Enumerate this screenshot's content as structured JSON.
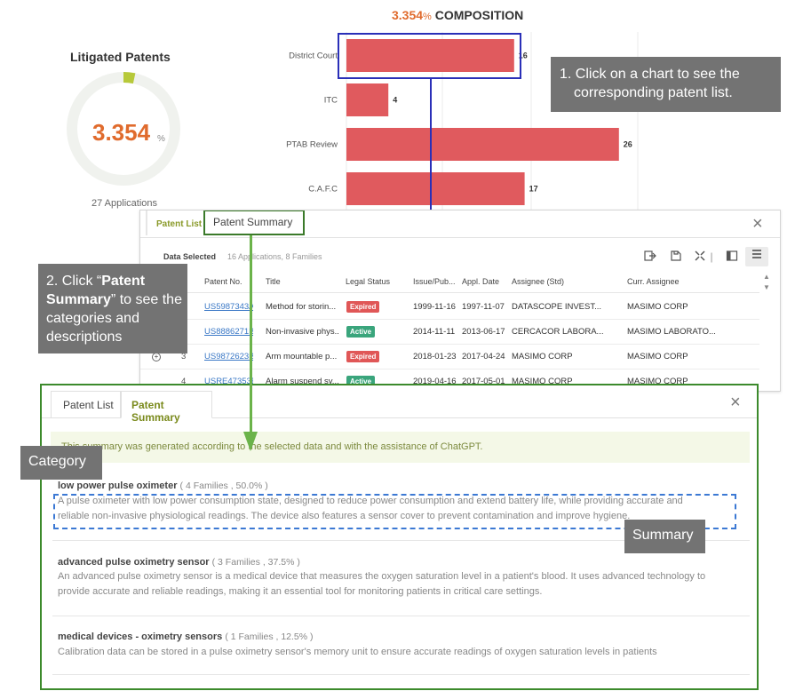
{
  "composition": {
    "percent": "3.354",
    "percent_sign": "%",
    "label": "COMPOSITION"
  },
  "litigated": {
    "title": "Litigated Patents",
    "value": "3.354",
    "unit": "%",
    "applications": "27 Applications",
    "fill_fraction": 0.03354,
    "ring_color": "#f0f2ee",
    "fill_color": "#b7c93a"
  },
  "chart_data": {
    "type": "bar",
    "orientation": "horizontal",
    "categories": [
      "District Court",
      "ITC",
      "PTAB Review",
      "C.A.F.C"
    ],
    "values": [
      16,
      4,
      26,
      17
    ],
    "bar_color": "#e05a5e",
    "title": "",
    "xlabel": "",
    "ylabel": "",
    "xlim": [
      0,
      36
    ],
    "grid": true
  },
  "callouts": {
    "step1_line1": "1. Click on a chart to see the",
    "step1_line2": "corresponding patent list.",
    "step2_prefix": "2. Click “",
    "step2_bold": "Patent Summary",
    "step2_suffix": "” to see the categories and descriptions",
    "category": "Category",
    "summary": "Summary"
  },
  "list_panel": {
    "tab_patent_list": "Patent List",
    "tab_patent_summary": "Patent Summary",
    "close": "×",
    "data_selected_label": "Data Selected",
    "data_selected_count": "16 Applications, 8 Families",
    "columns": [
      "#",
      "Patent No.",
      "Title",
      "Legal Status",
      "Issue/Pub...",
      "Appl. Date",
      "Assignee (Std)",
      "Curr. Assignee"
    ],
    "rows": [
      {
        "num": "1",
        "patent_no": "US5987343A",
        "title": "Method for storin...",
        "status": "Expired",
        "issue": "1999-11-16",
        "appl": "1997-11-07",
        "assignee": "DATASCOPE INVEST...",
        "curr": "MASIMO CORP"
      },
      {
        "num": "2",
        "patent_no": "US8886271B2",
        "title": "Non-invasive phys...",
        "status": "Active",
        "issue": "2014-11-11",
        "appl": "2013-06-17",
        "assignee": "CERCACOR LABORA...",
        "curr": "MASIMO LABORATO..."
      },
      {
        "num": "3",
        "patent_no": "US9872623B2",
        "title": "Arm mountable p...",
        "status": "Expired",
        "issue": "2018-01-23",
        "appl": "2017-04-24",
        "assignee": "MASIMO CORP",
        "curr": "MASIMO CORP"
      },
      {
        "num": "4",
        "patent_no": "USRE47353E",
        "title": "Alarm suspend sy...",
        "status": "Active",
        "issue": "2019-04-16",
        "appl": "2017-05-01",
        "assignee": "MASIMO CORP",
        "curr": "MASIMO CORP"
      }
    ]
  },
  "summary_panel": {
    "tab_patent_list": "Patent List",
    "tab_patent_summary": "Patent Summary",
    "close": "×",
    "notice": "This summary was generated according to the selected data and with the assistance of ChatGPT.",
    "categories": [
      {
        "name": "low power pulse oximeter",
        "meta": "( 4 Families , 50.0% )",
        "desc": "A pulse oximeter with low power consumption state, designed to reduce power consumption and extend battery life, while providing accurate and reliable non-invasive physiological readings. The device also features a sensor cover to prevent contamination and improve hygiene."
      },
      {
        "name": "advanced pulse oximetry sensor",
        "meta": "( 3 Families , 37.5% )",
        "desc": "An advanced pulse oximetry sensor is a medical device that measures the oxygen saturation level in a patient's blood. It uses advanced technology to provide accurate and reliable readings, making it an essential tool for monitoring patients in critical care settings."
      },
      {
        "name": "medical devices - oximetry sensors",
        "meta": "( 1 Families , 12.5% )",
        "desc": "Calibration data can be stored in a pulse oximetry sensor's memory unit to ensure accurate readings of oxygen saturation levels in patients"
      }
    ]
  }
}
